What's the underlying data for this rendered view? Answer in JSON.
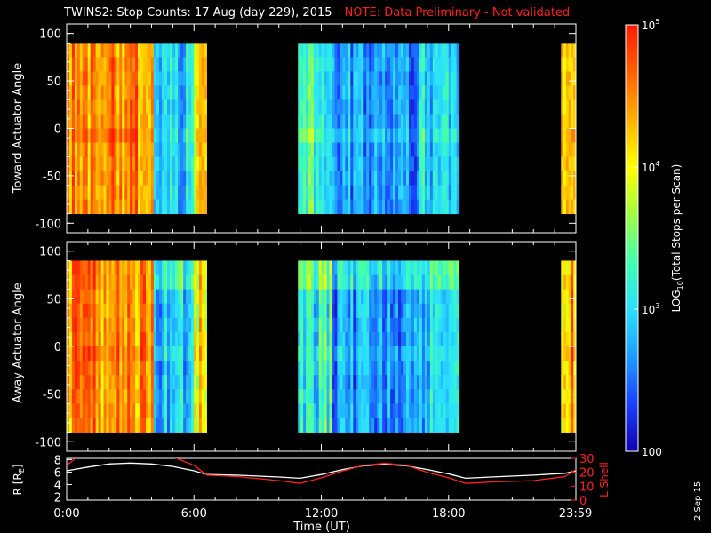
{
  "title": {
    "main": "TWINS2: Stop Counts: 17 Aug (day 229), 2015",
    "note": "NOTE: Data Preliminary - Not validated"
  },
  "side_date": "2 Sep 15",
  "colors": {
    "background": "#000000",
    "axes": "#ffffff",
    "note": "#ff2020",
    "r_line": "#ffffff",
    "lshell_line": "#ff2020",
    "colormap": [
      "#1000b0",
      "#1a40ff",
      "#1e9cff",
      "#2ae0ff",
      "#40ffb0",
      "#a0ff40",
      "#ffff00",
      "#ffb000",
      "#ff6000",
      "#ff1a00"
    ]
  },
  "chart_data": [
    {
      "type": "heatmap",
      "panel": "top",
      "ylabel": "Toward Actuator Angle",
      "ylim": [
        -110,
        110
      ],
      "yticks": [
        "100",
        "50",
        "0",
        "-50",
        "-100"
      ],
      "ytick_values": [
        100,
        50,
        0,
        -50,
        -100
      ],
      "xlim_hours": [
        0,
        24
      ],
      "data_y_range": [
        -90,
        90
      ],
      "segments": [
        {
          "start": 0.0,
          "end": 4.1,
          "level": 0.82
        },
        {
          "start": 4.1,
          "end": 6.0,
          "level": 0.28
        },
        {
          "start": 6.0,
          "end": 6.6,
          "level": 0.7
        },
        {
          "start": 10.9,
          "end": 12.5,
          "level": 0.42
        },
        {
          "start": 12.5,
          "end": 16.5,
          "level": 0.25
        },
        {
          "start": 16.5,
          "end": 18.5,
          "level": 0.3
        },
        {
          "start": 23.3,
          "end": 24.0,
          "level": 0.8
        }
      ]
    },
    {
      "type": "heatmap",
      "panel": "middle",
      "ylabel": "Away Actuator Angle",
      "ylim": [
        -110,
        110
      ],
      "yticks": [
        "100",
        "50",
        "0",
        "-50",
        "-100"
      ],
      "ytick_values": [
        100,
        50,
        0,
        -50,
        -100
      ],
      "xlim_hours": [
        0,
        24
      ],
      "data_y_range": [
        -90,
        90
      ],
      "segments": [
        {
          "start": 0.0,
          "end": 4.1,
          "level": 0.82
        },
        {
          "start": 4.1,
          "end": 6.0,
          "level": 0.28
        },
        {
          "start": 6.0,
          "end": 6.6,
          "level": 0.7
        },
        {
          "start": 10.9,
          "end": 12.5,
          "level": 0.38
        },
        {
          "start": 12.5,
          "end": 16.5,
          "level": 0.22
        },
        {
          "start": 16.5,
          "end": 18.5,
          "level": 0.3
        },
        {
          "start": 23.3,
          "end": 24.0,
          "level": 0.8
        }
      ]
    },
    {
      "type": "line",
      "panel": "bottom",
      "ylabel": "R [R",
      "ylabel_sub": "E",
      "ylabel_end": "]",
      "ylabel_right": "L Shell",
      "ylim_left": [
        1.5,
        8.2
      ],
      "ylim_right": [
        0,
        30
      ],
      "yticks_left": [
        "8",
        "6",
        "4",
        "2"
      ],
      "ytick_left_values": [
        8,
        6,
        4,
        2
      ],
      "yticks_right": [
        "30",
        "20",
        "10",
        "0"
      ],
      "ytick_right_values": [
        30,
        20,
        10,
        0
      ],
      "xlabel": "Time (UT)",
      "xticks": [
        "0:00",
        "6:00",
        "12:00",
        "18:00",
        "23:59"
      ],
      "xtick_hours": [
        0,
        6,
        12,
        18,
        23.98
      ],
      "series": [
        {
          "axis": "left",
          "color": "#ffffff",
          "x": [
            0,
            1,
            2,
            3,
            4,
            5,
            6,
            6.6,
            8,
            10,
            11,
            12,
            13,
            14,
            15,
            16,
            17,
            18,
            18.8,
            20,
            22,
            23.5,
            24
          ],
          "y": [
            6.2,
            6.8,
            7.3,
            7.45,
            7.3,
            6.9,
            6.2,
            5.6,
            5.5,
            5.2,
            5.0,
            5.6,
            6.4,
            7.0,
            7.25,
            7.0,
            6.4,
            5.7,
            5.0,
            5.2,
            5.5,
            5.8,
            6.2
          ]
        },
        {
          "axis": "right",
          "color": "#ff2020",
          "x": [
            0,
            0.5,
            5.0,
            6.0,
            6.6,
            8,
            10,
            11,
            12,
            13,
            14,
            15,
            16,
            17,
            18,
            18.8,
            20,
            22,
            23.5,
            24
          ],
          "y": [
            25,
            31,
            31,
            25,
            18,
            17,
            14,
            12,
            16,
            21,
            25,
            26.5,
            25,
            20,
            16,
            12,
            13,
            14,
            17,
            22
          ]
        }
      ]
    }
  ],
  "colorbar": {
    "label": "LOG",
    "label_sub": "10",
    "label_end": "(Total Stops per Scan)",
    "ticks": [
      {
        "base": "10",
        "exp": "5",
        "value": 100000
      },
      {
        "base": "10",
        "exp": "4",
        "value": 10000
      },
      {
        "base": "10",
        "exp": "3",
        "value": 1000
      },
      {
        "base": "100",
        "exp": "",
        "value": 100
      }
    ],
    "range": [
      100,
      100000
    ]
  }
}
